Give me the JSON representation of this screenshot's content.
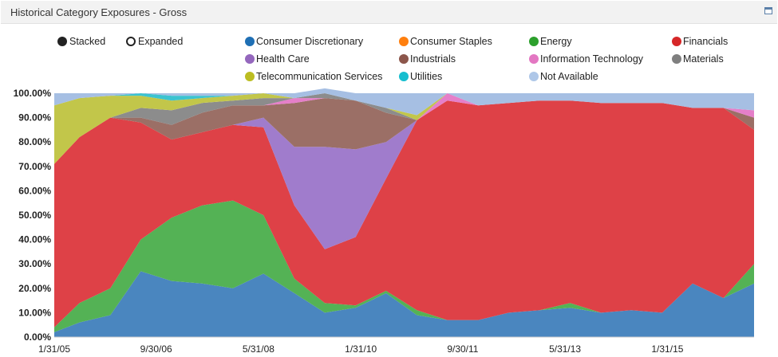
{
  "panel": {
    "title": "Historical Category Exposures - Gross"
  },
  "modes": [
    {
      "label": "Stacked",
      "selected": true
    },
    {
      "label": "Expanded",
      "selected": false
    }
  ],
  "colors": {
    "Consumer Discretionary": "#4a86bf",
    "Consumer Staples": "#f5822a",
    "Energy": "#54b255",
    "Financials": "#de4147",
    "Health Care": "#a07ccc",
    "Industrials": "#9b6f66",
    "Information Technology": "#e57fc9",
    "Materials": "#8c8c8c",
    "Telecommunication Services": "#c2c64a",
    "Utilities": "#3cc3d0",
    "Not Available": "#a6bfe3"
  },
  "legend_dot_colors": {
    "Consumer Discretionary": "#1f6fb4",
    "Consumer Staples": "#ff7f0e",
    "Energy": "#2ca02c",
    "Financials": "#d62728",
    "Health Care": "#9467bd",
    "Industrials": "#8c564b",
    "Information Technology": "#e377c2",
    "Materials": "#7f7f7f",
    "Telecommunication Services": "#bcbd22",
    "Utilities": "#17becf",
    "Not Available": "#aec7e8"
  },
  "chart_data": {
    "type": "area",
    "stacked": true,
    "title": "Historical Category Exposures - Gross",
    "x_start": "2005-01-31",
    "x_end": "2016-06-30",
    "x_tick_labels": [
      "1/31/05",
      "9/30/06",
      "5/31/08",
      "1/31/10",
      "9/30/11",
      "5/31/13",
      "1/31/15"
    ],
    "x_tick_dates": [
      "2005-01-31",
      "2006-09-30",
      "2008-05-31",
      "2010-01-31",
      "2011-09-30",
      "2013-05-31",
      "2015-01-31"
    ],
    "y_tick_labels": [
      "0.00%",
      "10.00%",
      "20.00%",
      "30.00%",
      "40.00%",
      "50.00%",
      "60.00%",
      "70.00%",
      "80.00%",
      "90.00%",
      "100.00%"
    ],
    "ylim": [
      0,
      100
    ],
    "legend_position": "top",
    "dates": [
      "2005-01-31",
      "2005-06-30",
      "2005-12-31",
      "2006-06-30",
      "2006-12-31",
      "2007-06-30",
      "2007-12-31",
      "2008-06-30",
      "2008-12-31",
      "2009-06-30",
      "2009-12-31",
      "2010-06-30",
      "2010-12-31",
      "2011-06-30",
      "2011-12-31",
      "2012-06-30",
      "2012-12-31",
      "2013-06-30",
      "2013-12-31",
      "2014-06-30",
      "2014-12-31",
      "2015-06-30",
      "2015-12-31",
      "2016-06-30"
    ],
    "series": [
      {
        "name": "Consumer Discretionary",
        "values": [
          2,
          6,
          9,
          27,
          23,
          22,
          20,
          26,
          18,
          10,
          12,
          18,
          9,
          7,
          7,
          10,
          11,
          12,
          10,
          11,
          10,
          22,
          16,
          22
        ]
      },
      {
        "name": "Consumer Staples",
        "values": [
          0,
          0,
          0,
          0,
          0,
          0,
          0,
          0,
          0,
          0,
          0,
          0,
          0,
          0,
          0,
          0,
          0,
          0,
          0,
          0,
          0,
          0,
          0,
          0
        ]
      },
      {
        "name": "Energy",
        "values": [
          2,
          8,
          11,
          13,
          26,
          32,
          36,
          24,
          6,
          4,
          1,
          1,
          2,
          0,
          0,
          0,
          0,
          2,
          0,
          0,
          0,
          0,
          0,
          8
        ]
      },
      {
        "name": "Financials",
        "values": [
          67,
          68,
          70,
          48,
          32,
          30,
          31,
          36,
          30,
          22,
          28,
          46,
          78,
          90,
          88,
          86,
          86,
          83,
          86,
          85,
          86,
          72,
          78,
          55
        ]
      },
      {
        "name": "Health Care",
        "values": [
          0,
          0,
          0,
          0,
          0,
          0,
          0,
          4,
          24,
          42,
          36,
          15,
          0,
          0,
          0,
          0,
          0,
          0,
          0,
          0,
          0,
          0,
          0,
          0
        ]
      },
      {
        "name": "Industrials",
        "values": [
          0,
          0,
          0,
          2,
          6,
          8,
          8,
          5,
          18,
          20,
          20,
          12,
          0,
          0,
          0,
          0,
          0,
          0,
          0,
          0,
          0,
          0,
          0,
          5
        ]
      },
      {
        "name": "Information Technology",
        "values": [
          0,
          0,
          0,
          0,
          0,
          0,
          0,
          0,
          2,
          0,
          0,
          0,
          0,
          3,
          0,
          0,
          0,
          0,
          0,
          0,
          0,
          0,
          0,
          3
        ]
      },
      {
        "name": "Materials",
        "values": [
          0,
          0,
          0,
          4,
          6,
          4,
          2,
          3,
          0,
          2,
          0,
          2,
          0,
          0,
          0,
          0,
          0,
          0,
          0,
          0,
          0,
          0,
          0,
          0
        ]
      },
      {
        "name": "Telecommunication Services",
        "values": [
          24,
          16,
          9,
          5,
          4,
          2,
          2,
          2,
          0,
          0,
          0,
          0,
          2,
          0,
          0,
          0,
          0,
          0,
          0,
          0,
          0,
          0,
          0,
          0
        ]
      },
      {
        "name": "Utilities",
        "values": [
          0,
          0,
          0,
          1,
          2,
          1,
          0,
          0,
          0,
          0,
          0,
          0,
          0,
          0,
          0,
          0,
          0,
          0,
          0,
          0,
          0,
          0,
          0,
          0
        ]
      },
      {
        "name": "Not Available",
        "values": [
          5,
          2,
          1,
          0,
          1,
          1,
          1,
          0,
          2,
          2,
          3,
          6,
          9,
          0,
          5,
          4,
          3,
          3,
          4,
          4,
          4,
          6,
          6,
          7
        ]
      }
    ]
  }
}
